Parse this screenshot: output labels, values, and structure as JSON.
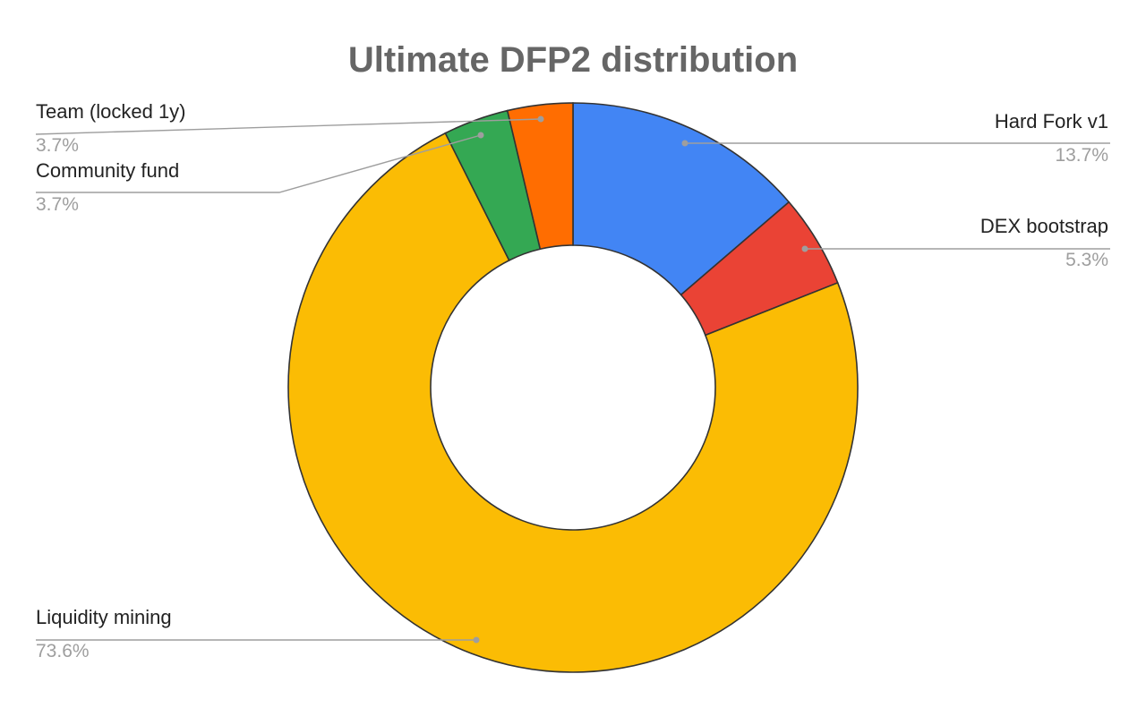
{
  "chart_data": {
    "type": "pie",
    "donut": true,
    "title": "Ultimate DFP2 distribution",
    "slices": [
      {
        "label": "Hard Fork v1",
        "value": 13.7,
        "display": "13.7%",
        "color": "#4285f4"
      },
      {
        "label": "DEX bootstrap",
        "value": 5.3,
        "display": "5.3%",
        "color": "#ea4335"
      },
      {
        "label": "Liquidity mining",
        "value": 73.6,
        "display": "73.6%",
        "color": "#fbbc04"
      },
      {
        "label": "Community fund",
        "value": 3.7,
        "display": "3.7%",
        "color": "#34a853"
      },
      {
        "label": "Team (locked 1y)",
        "value": 3.7,
        "display": "3.7%",
        "color": "#ff6d01"
      }
    ],
    "start_angle": "12 o'clock",
    "direction": "clockwise",
    "legend": "none",
    "labels": "outside"
  }
}
